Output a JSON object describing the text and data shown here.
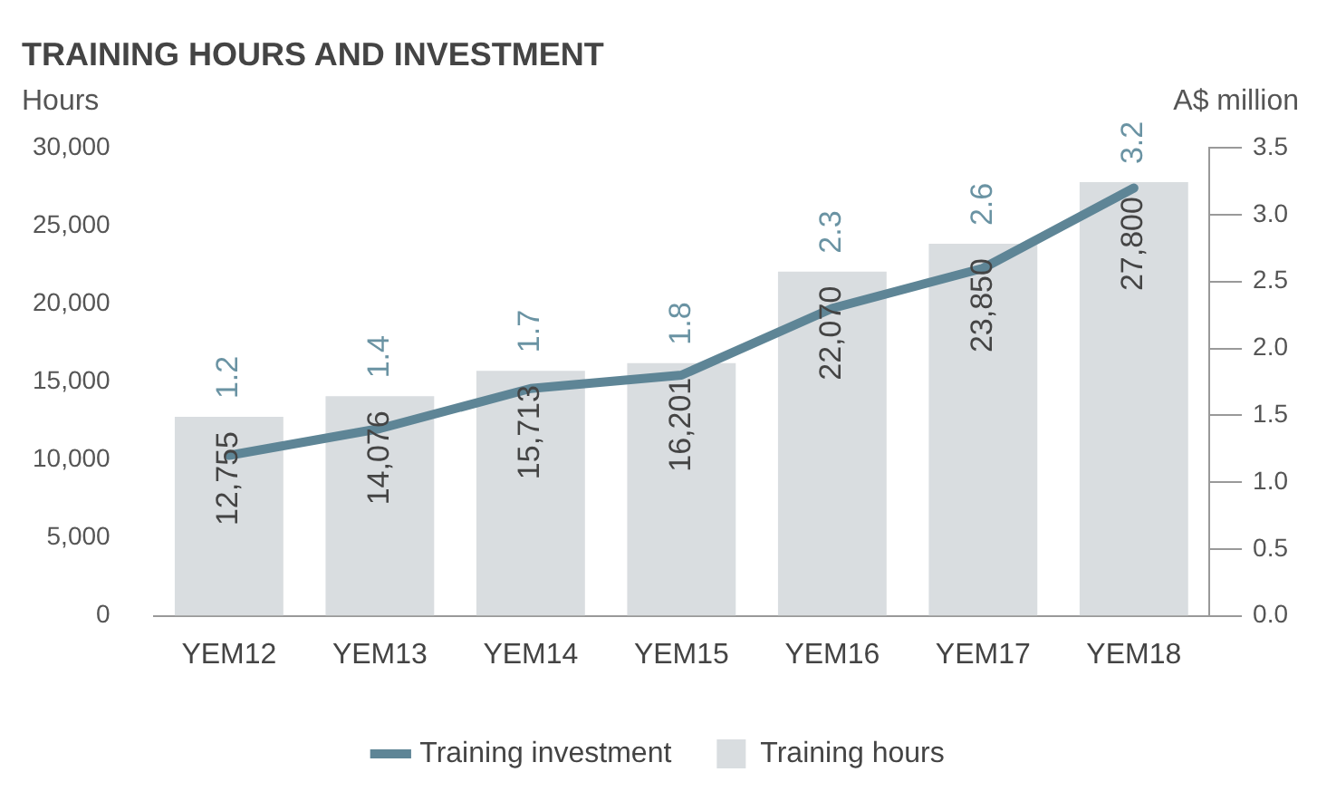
{
  "chart_data": {
    "type": "bar",
    "title": "TRAINING HOURS AND INVESTMENT",
    "ylabel": "Hours",
    "y2label": "A$ million",
    "categories": [
      "YEM12",
      "YEM13",
      "YEM14",
      "YEM15",
      "YEM16",
      "YEM17",
      "YEM18"
    ],
    "series": [
      {
        "name": "Training investment",
        "type": "line",
        "axis": "y2",
        "color": "#5e8596",
        "values": [
          1.2,
          1.4,
          1.7,
          1.8,
          2.3,
          2.6,
          3.2
        ],
        "value_labels": [
          "1.2",
          "1.4",
          "1.7",
          "1.8",
          "2.3",
          "2.6",
          "3.2"
        ]
      },
      {
        "name": "Training hours",
        "color": "#d9dde0",
        "values": [
          12755,
          14076,
          15713,
          16201,
          22070,
          23850,
          27800
        ],
        "value_labels": [
          "12,755",
          "14,076",
          "15,713",
          "16,201",
          "22,070",
          "23,850",
          "27,800"
        ]
      }
    ],
    "ylim": [
      0,
      30000
    ],
    "yticks": [
      {
        "value": 0,
        "label": "0"
      },
      {
        "value": 5000,
        "label": "5,000"
      },
      {
        "value": 10000,
        "label": "10,000"
      },
      {
        "value": 15000,
        "label": "15,000"
      },
      {
        "value": 20000,
        "label": "20,000"
      },
      {
        "value": 25000,
        "label": "25,000"
      },
      {
        "value": 30000,
        "label": "30,000"
      }
    ],
    "y2lim": [
      0,
      3.5
    ],
    "y2ticks": [
      {
        "value": 0,
        "label": "0.0"
      },
      {
        "value": 0.5,
        "label": "0.5"
      },
      {
        "value": 1,
        "label": "1.0"
      },
      {
        "value": 1.5,
        "label": "1.5"
      },
      {
        "value": 2,
        "label": "2.0"
      },
      {
        "value": 2.5,
        "label": "2.5"
      },
      {
        "value": 3,
        "label": "3.0"
      },
      {
        "value": 3.5,
        "label": "3.5"
      }
    ],
    "grid": false,
    "legend": "bottom"
  }
}
